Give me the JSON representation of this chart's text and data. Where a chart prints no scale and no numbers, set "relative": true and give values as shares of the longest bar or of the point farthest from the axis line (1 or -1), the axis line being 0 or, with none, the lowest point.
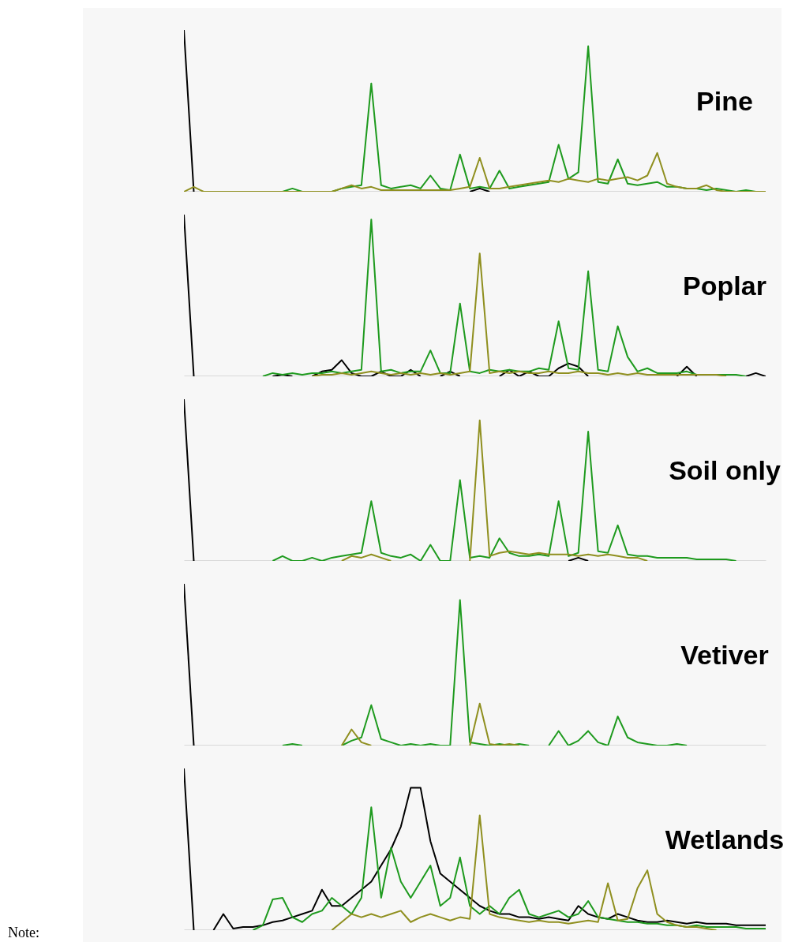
{
  "chart_data": [
    {
      "type": "line",
      "title": "Pine",
      "relative": true,
      "categories": [
        null,
        null,
        null,
        null,
        null,
        null,
        null,
        null,
        null,
        null,
        null,
        null,
        null,
        null,
        null,
        null,
        null,
        null,
        null,
        null,
        null,
        null,
        null,
        null,
        null,
        null,
        null,
        null,
        null,
        null,
        null,
        null,
        null,
        null,
        null,
        null,
        null,
        null,
        null,
        null,
        null,
        null,
        null,
        null,
        null,
        null,
        null,
        null,
        null,
        null,
        null,
        null,
        null,
        null,
        null,
        null,
        null,
        null,
        null,
        null
      ],
      "series": [
        {
          "color": "#000000",
          "values": [
            1,
            0,
            null,
            null,
            null,
            null,
            null,
            null,
            null,
            null,
            null,
            null,
            null,
            null,
            null,
            null,
            null,
            null,
            null,
            null,
            null,
            null,
            null,
            null,
            null,
            null,
            null,
            null,
            null,
            0,
            0.02,
            0,
            null,
            null,
            null,
            null,
            null,
            null,
            null,
            null,
            null,
            null,
            null,
            null,
            null,
            null,
            null,
            null,
            null,
            null,
            null,
            null,
            null,
            null,
            null,
            null,
            null,
            null,
            null,
            null
          ]
        },
        {
          "color": "#1e9a1e",
          "values": [
            null,
            null,
            null,
            null,
            null,
            null,
            null,
            null,
            null,
            null,
            0,
            0.02,
            0,
            null,
            null,
            0,
            0.02,
            0.03,
            0.04,
            0.67,
            0.04,
            0.02,
            0.03,
            0.04,
            0.02,
            0.1,
            0.02,
            0.01,
            0.23,
            0.02,
            0.03,
            0.02,
            0.13,
            0.02,
            0.03,
            0.04,
            0.05,
            0.06,
            0.29,
            0.08,
            0.12,
            0.9,
            0.06,
            0.05,
            0.2,
            0.05,
            0.04,
            0.05,
            0.06,
            0.03,
            0.03,
            0.02,
            0.02,
            0.01,
            0.02,
            0.01,
            0,
            0.01,
            0,
            null
          ]
        },
        {
          "color": "#8f8f1f",
          "values": [
            0,
            0.03,
            0,
            0,
            0,
            0,
            0,
            0,
            0,
            0,
            0,
            0,
            0,
            0,
            0,
            0,
            0.02,
            0.04,
            0.02,
            0.03,
            0.01,
            0.01,
            0.01,
            0.01,
            0.01,
            0.01,
            0.01,
            0.01,
            0.02,
            0.03,
            0.21,
            0.02,
            0.02,
            0.03,
            0.04,
            0.05,
            0.06,
            0.07,
            0.06,
            0.08,
            0.07,
            0.06,
            0.08,
            0.07,
            0.08,
            0.09,
            0.07,
            0.1,
            0.24,
            0.05,
            0.03,
            0.02,
            0.02,
            0.04,
            0.01,
            0,
            0,
            0,
            0,
            0
          ]
        }
      ]
    },
    {
      "type": "line",
      "title": "Poplar",
      "relative": true,
      "categories": [
        null,
        null,
        null,
        null,
        null,
        null,
        null,
        null,
        null,
        null,
        null,
        null,
        null,
        null,
        null,
        null,
        null,
        null,
        null,
        null,
        null,
        null,
        null,
        null,
        null,
        null,
        null,
        null,
        null,
        null,
        null,
        null,
        null,
        null,
        null,
        null,
        null,
        null,
        null,
        null,
        null,
        null,
        null,
        null,
        null,
        null,
        null,
        null,
        null,
        null,
        null,
        null,
        null,
        null,
        null,
        null,
        null,
        null,
        null,
        null
      ],
      "series": [
        {
          "color": "#000000",
          "values": [
            1,
            0,
            null,
            null,
            null,
            null,
            null,
            null,
            null,
            0,
            0.01,
            0,
            null,
            0,
            0.03,
            0.04,
            0.1,
            0.02,
            0,
            0,
            0.03,
            0,
            0,
            0.04,
            0,
            null,
            0,
            0.03,
            0,
            null,
            null,
            null,
            0,
            0.04,
            0,
            0.03,
            0,
            0,
            0.05,
            0.08,
            0.06,
            0,
            null,
            null,
            null,
            null,
            null,
            null,
            null,
            null,
            0,
            0.06,
            0,
            null,
            null,
            null,
            null,
            0,
            0.02,
            0
          ]
        },
        {
          "color": "#1e9a1e",
          "values": [
            null,
            null,
            null,
            null,
            null,
            null,
            null,
            null,
            0,
            0.02,
            0.01,
            0.02,
            0.01,
            0.02,
            0.02,
            0.03,
            0.02,
            0.03,
            0.04,
            0.97,
            0.03,
            0.04,
            0.02,
            0.03,
            0.03,
            0.16,
            0.02,
            0.02,
            0.45,
            0.03,
            0.02,
            0.04,
            0.03,
            0.04,
            0.03,
            0.03,
            0.05,
            0.04,
            0.34,
            0.05,
            0.04,
            0.65,
            0.04,
            0.03,
            0.31,
            0.12,
            0.03,
            0.05,
            0.02,
            0.02,
            0.02,
            0.03,
            0.01,
            0.01,
            0.01,
            0.01,
            0.01,
            0,
            null,
            null
          ]
        },
        {
          "color": "#8f8f1f",
          "values": [
            null,
            null,
            null,
            null,
            null,
            null,
            null,
            null,
            null,
            null,
            null,
            null,
            null,
            0,
            0.01,
            0.01,
            0.02,
            0.01,
            0.02,
            0.03,
            0.02,
            0.01,
            0.02,
            0.01,
            0.02,
            0.01,
            0.02,
            0.01,
            0.02,
            0.03,
            0.76,
            0.02,
            0.03,
            0.02,
            0.03,
            0.02,
            0.02,
            0.03,
            0.02,
            0.02,
            0.03,
            0.02,
            0.02,
            0.01,
            0.02,
            0.01,
            0.02,
            0.01,
            0.01,
            0.01,
            0.01,
            0.01,
            0.01,
            0.01,
            0.01,
            0,
            null,
            null,
            null,
            null
          ]
        }
      ]
    },
    {
      "type": "line",
      "title": "Soil only",
      "relative": true,
      "categories": [
        null,
        null,
        null,
        null,
        null,
        null,
        null,
        null,
        null,
        null,
        null,
        null,
        null,
        null,
        null,
        null,
        null,
        null,
        null,
        null,
        null,
        null,
        null,
        null,
        null,
        null,
        null,
        null,
        null,
        null,
        null,
        null,
        null,
        null,
        null,
        null,
        null,
        null,
        null,
        null,
        null,
        null,
        null,
        null,
        null,
        null,
        null,
        null,
        null,
        null,
        null,
        null,
        null,
        null,
        null,
        null,
        null,
        null,
        null,
        null
      ],
      "series": [
        {
          "color": "#000000",
          "values": [
            1,
            0,
            null,
            null,
            null,
            null,
            null,
            null,
            null,
            null,
            null,
            null,
            null,
            null,
            null,
            null,
            null,
            null,
            null,
            null,
            null,
            null,
            null,
            null,
            null,
            null,
            null,
            null,
            null,
            null,
            null,
            null,
            null,
            null,
            null,
            null,
            null,
            null,
            null,
            0,
            0.02,
            0,
            null,
            null,
            null,
            null,
            null,
            null,
            null,
            null,
            null,
            null,
            null,
            null,
            null,
            null,
            null,
            null,
            null,
            null
          ]
        },
        {
          "color": "#1e9a1e",
          "values": [
            null,
            null,
            null,
            null,
            null,
            null,
            null,
            null,
            null,
            0,
            0.03,
            0,
            0,
            0.02,
            0,
            0.02,
            0.03,
            0.04,
            0.05,
            0.37,
            0.05,
            0.03,
            0.02,
            0.04,
            0,
            0.1,
            0,
            0,
            0.5,
            0.02,
            0.03,
            0.02,
            0.14,
            0.05,
            0.03,
            0.03,
            0.04,
            0.03,
            0.37,
            0.03,
            0.05,
            0.8,
            0.06,
            0.05,
            0.22,
            0.04,
            0.03,
            0.03,
            0.02,
            0.02,
            0.02,
            0.02,
            0.01,
            0.01,
            0.01,
            0.01,
            0,
            null,
            null,
            null
          ]
        },
        {
          "color": "#8f8f1f",
          "values": [
            null,
            null,
            null,
            null,
            null,
            null,
            null,
            null,
            null,
            null,
            null,
            null,
            null,
            null,
            null,
            null,
            0,
            0.03,
            0.02,
            0.04,
            0.02,
            0,
            null,
            null,
            null,
            null,
            null,
            null,
            null,
            0,
            0.87,
            0.03,
            0.05,
            0.06,
            0.05,
            0.04,
            0.05,
            0.04,
            0.04,
            0.04,
            0.03,
            0.04,
            0.03,
            0.04,
            0.03,
            0.02,
            0.02,
            0,
            null,
            null,
            null,
            null,
            null,
            null,
            null,
            null,
            null,
            null,
            null,
            null
          ]
        }
      ]
    },
    {
      "type": "line",
      "title": "Vetiver",
      "relative": true,
      "categories": [
        null,
        null,
        null,
        null,
        null,
        null,
        null,
        null,
        null,
        null,
        null,
        null,
        null,
        null,
        null,
        null,
        null,
        null,
        null,
        null,
        null,
        null,
        null,
        null,
        null,
        null,
        null,
        null,
        null,
        null,
        null,
        null,
        null,
        null,
        null,
        null,
        null,
        null,
        null,
        null,
        null,
        null,
        null,
        null,
        null,
        null,
        null,
        null,
        null,
        null,
        null,
        null,
        null,
        null,
        null,
        null,
        null,
        null,
        null,
        null
      ],
      "series": [
        {
          "color": "#000000",
          "values": [
            1,
            0,
            null,
            null,
            null,
            null,
            null,
            null,
            null,
            null,
            null,
            null,
            null,
            null,
            null,
            null,
            null,
            null,
            null,
            null,
            null,
            null,
            null,
            null,
            null,
            null,
            null,
            null,
            null,
            null,
            null,
            null,
            null,
            null,
            null,
            null,
            null,
            null,
            null,
            null,
            null,
            null,
            null,
            null,
            null,
            null,
            null,
            null,
            null,
            null,
            null,
            null,
            null,
            null,
            null,
            null,
            null,
            null,
            null,
            null
          ]
        },
        {
          "color": "#1e9a1e",
          "values": [
            null,
            null,
            null,
            null,
            null,
            null,
            null,
            null,
            null,
            null,
            0,
            0.01,
            0,
            null,
            null,
            null,
            0,
            0.03,
            0.05,
            0.25,
            0.04,
            0.02,
            0,
            0.01,
            0,
            0.01,
            0,
            0,
            0.9,
            0.02,
            0.01,
            0,
            0.01,
            0,
            0.01,
            0,
            null,
            0,
            0.09,
            0,
            0.03,
            0.09,
            0.02,
            0,
            0.18,
            0.05,
            0.02,
            0.01,
            0,
            0,
            0.01,
            0,
            null,
            null,
            null,
            null,
            null,
            null,
            null,
            null
          ]
        },
        {
          "color": "#8f8f1f",
          "values": [
            null,
            null,
            null,
            null,
            null,
            null,
            null,
            null,
            null,
            null,
            null,
            null,
            null,
            null,
            null,
            null,
            0,
            0.1,
            0.02,
            0,
            null,
            null,
            null,
            null,
            null,
            null,
            null,
            null,
            null,
            0,
            0.26,
            0.01,
            0,
            0.01,
            0,
            null,
            null,
            null,
            null,
            null,
            null,
            null,
            null,
            null,
            null,
            null,
            null,
            null,
            null,
            null,
            null,
            null,
            null,
            null,
            null,
            null,
            null,
            null,
            null,
            null
          ]
        }
      ]
    },
    {
      "type": "line",
      "title": "Wetlands",
      "relative": true,
      "annotations": [
        "Note:"
      ],
      "categories": [
        null,
        null,
        null,
        null,
        null,
        null,
        null,
        null,
        null,
        null,
        null,
        null,
        null,
        null,
        null,
        null,
        null,
        null,
        null,
        null,
        null,
        null,
        null,
        null,
        null,
        null,
        null,
        null,
        null,
        null,
        null,
        null,
        null,
        null,
        null,
        null,
        null,
        null,
        null,
        null,
        null,
        null,
        null,
        null,
        null,
        null,
        null,
        null,
        null,
        null,
        null,
        null,
        null,
        null,
        null,
        null,
        null,
        null,
        null,
        null
      ],
      "series": [
        {
          "color": "#000000",
          "values": [
            1,
            0,
            null,
            0,
            0.1,
            0.01,
            0.02,
            0.02,
            0.03,
            0.05,
            0.06,
            0.08,
            0.1,
            0.12,
            0.25,
            0.15,
            0.15,
            0.2,
            0.25,
            0.3,
            0.4,
            0.5,
            0.64,
            0.88,
            0.88,
            0.55,
            0.35,
            0.3,
            0.25,
            0.2,
            0.15,
            0.12,
            0.1,
            0.1,
            0.08,
            0.08,
            0.07,
            0.08,
            0.07,
            0.06,
            0.15,
            0.1,
            0.08,
            0.07,
            0.1,
            0.08,
            0.06,
            0.05,
            0.05,
            0.06,
            0.05,
            0.04,
            0.05,
            0.04,
            0.04,
            0.04,
            0.03,
            0.03,
            0.03,
            0.03
          ]
        },
        {
          "color": "#1e9a1e",
          "values": [
            null,
            null,
            null,
            null,
            null,
            null,
            null,
            0,
            0.03,
            0.19,
            0.2,
            0.08,
            0.05,
            0.1,
            0.12,
            0.2,
            0.15,
            0.1,
            0.2,
            0.76,
            0.2,
            0.51,
            0.3,
            0.2,
            0.3,
            0.4,
            0.15,
            0.2,
            0.45,
            0.15,
            0.1,
            0.15,
            0.1,
            0.2,
            0.25,
            0.1,
            0.08,
            0.1,
            0.12,
            0.08,
            0.1,
            0.18,
            0.08,
            0.07,
            0.06,
            0.05,
            0.05,
            0.04,
            0.04,
            0.03,
            0.03,
            0.02,
            0.03,
            0.02,
            0.02,
            0.02,
            0.02,
            0.01,
            0.01,
            0.01
          ]
        },
        {
          "color": "#8f8f1f",
          "values": [
            null,
            null,
            null,
            null,
            null,
            null,
            null,
            null,
            null,
            null,
            null,
            null,
            null,
            null,
            null,
            0,
            0.05,
            0.1,
            0.08,
            0.1,
            0.08,
            0.1,
            0.12,
            0.05,
            0.08,
            0.1,
            0.08,
            0.06,
            0.08,
            0.07,
            0.71,
            0.1,
            0.08,
            0.07,
            0.06,
            0.05,
            0.06,
            0.05,
            0.05,
            0.04,
            0.05,
            0.06,
            0.05,
            0.29,
            0.06,
            0.07,
            0.26,
            0.37,
            0.1,
            0.05,
            0.03,
            0.02,
            0.02,
            0.01,
            0,
            null,
            null,
            null,
            null,
            null
          ]
        }
      ]
    }
  ]
}
